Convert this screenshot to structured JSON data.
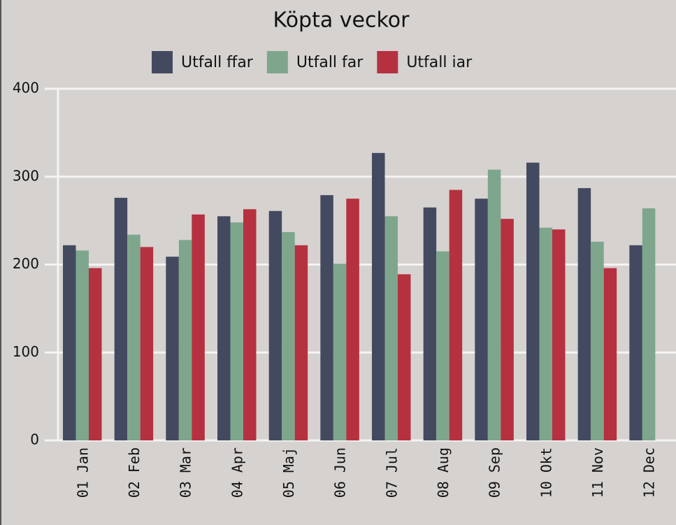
{
  "chart_data": {
    "type": "bar",
    "title": "Köpta veckor",
    "categories": [
      "01 Jan",
      "02 Feb",
      "03 Mar",
      "04 Apr",
      "05 Maj",
      "06 Jun",
      "07 Jul",
      "08 Aug",
      "09 Sep",
      "10 Okt",
      "11 Nov",
      "12 Dec"
    ],
    "series": [
      {
        "name": "Utfall ffar",
        "color": "#434a60",
        "values": [
          222,
          276,
          209,
          255,
          261,
          279,
          327,
          265,
          275,
          316,
          287,
          222
        ]
      },
      {
        "name": "Utfall far",
        "color": "#7ea68c",
        "values": [
          216,
          234,
          228,
          248,
          237,
          201,
          255,
          215,
          308,
          242,
          226,
          264
        ]
      },
      {
        "name": "Utfall iar",
        "color": "#b5313f",
        "values": [
          196,
          220,
          257,
          263,
          222,
          275,
          189,
          285,
          252,
          240,
          196,
          null
        ]
      }
    ],
    "ylim": [
      0,
      400
    ],
    "yticks": [
      0,
      100,
      200,
      300,
      400
    ],
    "grid": true,
    "legend": "top"
  }
}
